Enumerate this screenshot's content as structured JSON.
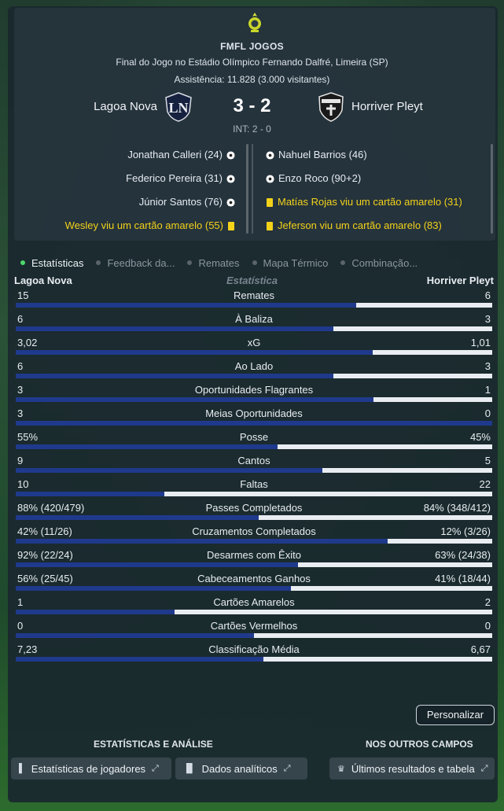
{
  "header": {
    "competition": "FMFL JOGOS",
    "venue": "Final do Jogo no Estádio Olímpico Fernando Dalfré, Limeira (SP)",
    "attendance": "Assistência: 11.828 (3.000 visitantes)",
    "home_team": "Lagoa Nova",
    "away_team": "Horriver Pleyt",
    "score": "3 - 2",
    "halftime": "INT: 2 - 0"
  },
  "events": {
    "home": [
      {
        "text": "Jonathan Calleri (24)",
        "type": "goal"
      },
      {
        "text": "Federico Pereira (31)",
        "type": "goal"
      },
      {
        "text": "Júnior Santos (76)",
        "type": "goal"
      },
      {
        "text": "Wesley viu um cartão amarelo (55)",
        "type": "yellow"
      }
    ],
    "away": [
      {
        "text": "Nahuel Barrios (46)",
        "type": "goal"
      },
      {
        "text": "Enzo Roco (90+2)",
        "type": "goal"
      },
      {
        "text": "Matías Rojas viu um cartão amarelo (31)",
        "type": "yellow"
      },
      {
        "text": "Jeferson viu um cartão amarelo (83)",
        "type": "yellow"
      }
    ]
  },
  "tabs": [
    {
      "label": "Estatísticas",
      "active": true
    },
    {
      "label": "Feedback da...",
      "active": false
    },
    {
      "label": "Remates",
      "active": false
    },
    {
      "label": "Mapa Térmico",
      "active": false
    },
    {
      "label": "Combinação...",
      "active": false
    }
  ],
  "stats_header": {
    "home": "Lagoa Nova",
    "middle": "Estatística",
    "away": "Horriver Pleyt"
  },
  "stats": [
    {
      "label": "Remates",
      "home": "15",
      "away": "6",
      "home_share": 0.714
    },
    {
      "label": "À Baliza",
      "home": "6",
      "away": "3",
      "home_share": 0.667
    },
    {
      "label": "xG",
      "home": "3,02",
      "away": "1,01",
      "home_share": 0.749
    },
    {
      "label": "Ao Lado",
      "home": "6",
      "away": "3",
      "home_share": 0.667
    },
    {
      "label": "Oportunidades Flagrantes",
      "home": "3",
      "away": "1",
      "home_share": 0.75
    },
    {
      "label": "Meias Oportunidades",
      "home": "3",
      "away": "0",
      "home_share": 1.0
    },
    {
      "label": "Posse",
      "home": "55%",
      "away": "45%",
      "home_share": 0.55
    },
    {
      "label": "Cantos",
      "home": "9",
      "away": "5",
      "home_share": 0.643
    },
    {
      "label": "Faltas",
      "home": "10",
      "away": "22",
      "home_share": 0.3125
    },
    {
      "label": "Passes Completados",
      "home": "88% (420/479)",
      "away": "84% (348/412)",
      "home_share": 0.51
    },
    {
      "label": "Cruzamentos Completados",
      "home": "42% (11/26)",
      "away": "12% (3/26)",
      "home_share": 0.78
    },
    {
      "label": "Desarmes com Êxito",
      "home": "92% (22/24)",
      "away": "63% (24/38)",
      "home_share": 0.593
    },
    {
      "label": "Cabeceamentos Ganhos",
      "home": "56% (25/45)",
      "away": "41% (18/44)",
      "home_share": 0.577
    },
    {
      "label": "Cartões Amarelos",
      "home": "1",
      "away": "2",
      "home_share": 0.333
    },
    {
      "label": "Cartões Vermelhos",
      "home": "0",
      "away": "0",
      "home_share": 0.5
    },
    {
      "label": "Classificação Média",
      "home": "7,23",
      "away": "6,67",
      "home_share": 0.52
    }
  ],
  "customize_label": "Personalizar",
  "sections": {
    "left_title": "ESTATÍSTICAS E ANÁLISE",
    "right_title": "NOS OUTROS CAMPOS",
    "player_stats": "Estatísticas de jogadores",
    "analytics": "Dados analíticos",
    "latest_results": "Últimos resultados e tabela"
  },
  "colors": {
    "home_bar": "#1f3a8c",
    "away_bar": "#e9edf1",
    "active_tab_dot": "#4cd96a",
    "yellow_card": "#f3d21a"
  }
}
